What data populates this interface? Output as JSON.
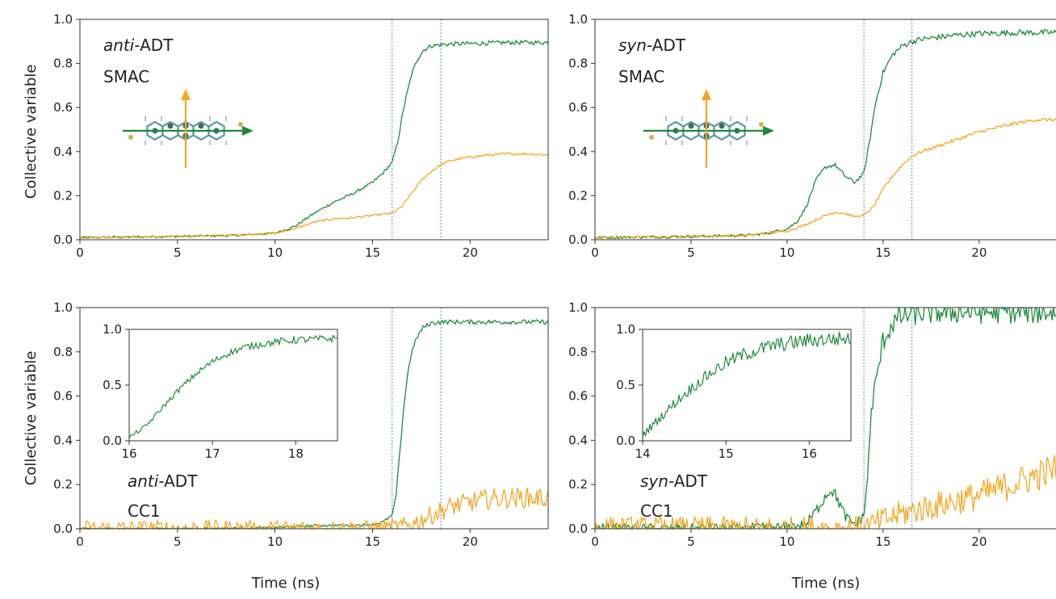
{
  "figure": {
    "ylabel": "Collective variable",
    "xlabel": "Time (ns)"
  },
  "colors": {
    "green": "#1e8a3a",
    "orange": "#f5a623",
    "vline": "#4a90d9",
    "molecule": "#5a9aa8",
    "axis": "#333333"
  },
  "chart_data": [
    {
      "id": "anti-smac",
      "type": "line",
      "annotation": {
        "italic": "anti",
        "rest": "-ADT",
        "line2": "SMAC"
      },
      "has_molecule_icon": true,
      "xlim": [
        0,
        24
      ],
      "ylim": [
        0,
        1.0
      ],
      "xticks": [
        0,
        5,
        10,
        15,
        20
      ],
      "yticks": [
        "0.0",
        "0.2",
        "0.4",
        "0.6",
        "0.8",
        "1.0"
      ],
      "vlines": [
        16.0,
        18.5
      ],
      "series": [
        {
          "color": "green",
          "noise": 0.006,
          "x": [
            0,
            5,
            8,
            10,
            11,
            12,
            13,
            14,
            15,
            15.5,
            16,
            16.3,
            16.6,
            17,
            17.3,
            17.6,
            18,
            18.5,
            19,
            20,
            22,
            24
          ],
          "y": [
            0.01,
            0.015,
            0.02,
            0.03,
            0.06,
            0.12,
            0.17,
            0.21,
            0.26,
            0.3,
            0.35,
            0.45,
            0.6,
            0.75,
            0.82,
            0.86,
            0.88,
            0.885,
            0.888,
            0.89,
            0.895,
            0.895
          ]
        },
        {
          "color": "orange",
          "noise": 0.005,
          "x": [
            0,
            5,
            8,
            10,
            11,
            12,
            13,
            14,
            15,
            16,
            16.5,
            17,
            17.5,
            18,
            18.5,
            19,
            20,
            21,
            22,
            23,
            24
          ],
          "y": [
            0.01,
            0.015,
            0.02,
            0.03,
            0.05,
            0.08,
            0.095,
            0.1,
            0.11,
            0.12,
            0.15,
            0.21,
            0.27,
            0.31,
            0.34,
            0.36,
            0.375,
            0.385,
            0.39,
            0.39,
            0.385
          ]
        }
      ]
    },
    {
      "id": "syn-smac",
      "type": "line",
      "annotation": {
        "italic": "syn",
        "rest": "-ADT",
        "line2": "SMAC"
      },
      "has_molecule_icon": true,
      "xlim": [
        0,
        24
      ],
      "ylim": [
        0,
        1.0
      ],
      "xticks": [
        0,
        5,
        10,
        15,
        20
      ],
      "yticks": [
        "0.0",
        "0.2",
        "0.4",
        "0.6",
        "0.8",
        "1.0"
      ],
      "vlines": [
        14.0,
        16.5
      ],
      "series": [
        {
          "color": "green",
          "noise": 0.008,
          "x": [
            0,
            5,
            8,
            9,
            10,
            10.5,
            11,
            11.5,
            12,
            12.5,
            13,
            13.5,
            14,
            14.3,
            14.6,
            15,
            15.5,
            16,
            16.5,
            17,
            18,
            19,
            20,
            22,
            24
          ],
          "y": [
            0.01,
            0.015,
            0.02,
            0.03,
            0.05,
            0.08,
            0.15,
            0.27,
            0.33,
            0.34,
            0.29,
            0.26,
            0.3,
            0.45,
            0.62,
            0.76,
            0.84,
            0.88,
            0.9,
            0.91,
            0.92,
            0.93,
            0.935,
            0.94,
            0.94
          ]
        },
        {
          "color": "orange",
          "noise": 0.006,
          "x": [
            0,
            5,
            8,
            10,
            11,
            12,
            12.5,
            13,
            13.5,
            14,
            14.5,
            15,
            15.5,
            16,
            16.5,
            17,
            18,
            19,
            20,
            21,
            22,
            23,
            24
          ],
          "y": [
            0.01,
            0.015,
            0.02,
            0.04,
            0.07,
            0.11,
            0.125,
            0.12,
            0.105,
            0.11,
            0.15,
            0.23,
            0.29,
            0.34,
            0.38,
            0.4,
            0.43,
            0.46,
            0.49,
            0.51,
            0.53,
            0.545,
            0.545
          ]
        }
      ]
    },
    {
      "id": "anti-cc1",
      "type": "line",
      "annotation": {
        "italic": "anti",
        "rest": "-ADT",
        "line2": "CC1"
      },
      "has_molecule_icon": false,
      "xlim": [
        0,
        24
      ],
      "ylim": [
        0,
        1.0
      ],
      "xticks": [
        0,
        5,
        10,
        15,
        20
      ],
      "yticks": [
        "0.0",
        "0.2",
        "0.4",
        "0.6",
        "0.8",
        "1.0"
      ],
      "vlines": [
        16.0,
        18.5
      ],
      "series": [
        {
          "color": "green",
          "noise": 0.006,
          "x": [
            0,
            5,
            10,
            11,
            12,
            13,
            14,
            15,
            15.5,
            16,
            16.2,
            16.4,
            16.6,
            16.8,
            17,
            17.3,
            17.6,
            18,
            18.5,
            19,
            20,
            22,
            24
          ],
          "y": [
            0.0,
            0.0,
            0.005,
            0.01,
            0.015,
            0.015,
            0.015,
            0.02,
            0.03,
            0.06,
            0.15,
            0.35,
            0.55,
            0.7,
            0.8,
            0.87,
            0.91,
            0.93,
            0.935,
            0.935,
            0.935,
            0.935,
            0.935
          ]
        },
        {
          "color": "orange",
          "noise": 0.05,
          "x": [
            0,
            10,
            15,
            16,
            16.5,
            17,
            17.5,
            18,
            18.5,
            19,
            20,
            21,
            22,
            23,
            24
          ],
          "y": [
            0.0,
            0.0,
            0.0,
            0.005,
            0.01,
            0.02,
            0.04,
            0.06,
            0.08,
            0.1,
            0.12,
            0.135,
            0.14,
            0.14,
            0.14
          ]
        }
      ],
      "inset": {
        "xlim": [
          16,
          18.5
        ],
        "ylim": [
          0,
          1.0
        ],
        "xticks": [
          "16",
          "17",
          "18"
        ],
        "xtick_values": [
          16,
          17,
          18
        ],
        "yticks": [
          "0.0",
          "0.5",
          "1.0"
        ],
        "ytick_values": [
          0,
          0.5,
          1.0
        ],
        "series": {
          "color": "green",
          "noise": 0.02,
          "x": [
            16,
            16.2,
            16.4,
            16.6,
            16.8,
            17,
            17.2,
            17.4,
            17.6,
            17.8,
            18,
            18.2,
            18.5
          ],
          "y": [
            0.03,
            0.13,
            0.3,
            0.46,
            0.6,
            0.71,
            0.79,
            0.84,
            0.87,
            0.89,
            0.905,
            0.91,
            0.92
          ]
        }
      }
    },
    {
      "id": "syn-cc1",
      "type": "line",
      "annotation": {
        "italic": "syn",
        "rest": "-ADT",
        "line2": "CC1"
      },
      "has_molecule_icon": false,
      "xlim": [
        0,
        24
      ],
      "ylim": [
        0,
        1.0
      ],
      "xticks": [
        0,
        5,
        10,
        15,
        20
      ],
      "yticks": [
        "0.0",
        "0.2",
        "0.4",
        "0.6",
        "0.8",
        "1.0"
      ],
      "vlines": [
        14.0,
        16.5
      ],
      "series": [
        {
          "color": "green",
          "noise": 0.03,
          "x": [
            0,
            5,
            10,
            11,
            11.5,
            12,
            12.3,
            12.6,
            13,
            13.3,
            13.6,
            14,
            14.2,
            14.4,
            14.6,
            14.8,
            15,
            15.5,
            16,
            16.5,
            17,
            18,
            20,
            22,
            24
          ],
          "y": [
            0.0,
            0.0,
            0.005,
            0.02,
            0.08,
            0.15,
            0.18,
            0.14,
            0.06,
            0.03,
            0.02,
            0.06,
            0.25,
            0.55,
            0.65,
            0.75,
            0.85,
            0.93,
            0.96,
            0.97,
            0.975,
            0.98,
            0.98,
            0.98,
            0.98
          ]
        },
        {
          "color": "orange",
          "noise": 0.07,
          "x": [
            0,
            10,
            13,
            14,
            14.5,
            15,
            16,
            17,
            18,
            19,
            20,
            21,
            22,
            23,
            24
          ],
          "y": [
            0.0,
            0.0,
            0.0,
            0.005,
            0.02,
            0.04,
            0.07,
            0.09,
            0.11,
            0.13,
            0.15,
            0.18,
            0.21,
            0.24,
            0.27
          ]
        }
      ],
      "inset": {
        "xlim": [
          14,
          16.5
        ],
        "ylim": [
          0,
          1.0
        ],
        "xticks": [
          "14",
          "15",
          "16"
        ],
        "xtick_values": [
          14,
          15,
          16
        ],
        "yticks": [
          "0.0",
          "0.5",
          "1.0"
        ],
        "ytick_values": [
          0,
          0.5,
          1.0
        ],
        "series": {
          "color": "green",
          "noise": 0.04,
          "x": [
            14,
            14.2,
            14.4,
            14.6,
            14.8,
            15,
            15.2,
            15.4,
            15.6,
            15.8,
            16,
            16.2,
            16.5
          ],
          "y": [
            0.05,
            0.2,
            0.35,
            0.48,
            0.6,
            0.7,
            0.77,
            0.82,
            0.86,
            0.88,
            0.9,
            0.91,
            0.92
          ]
        }
      }
    }
  ]
}
